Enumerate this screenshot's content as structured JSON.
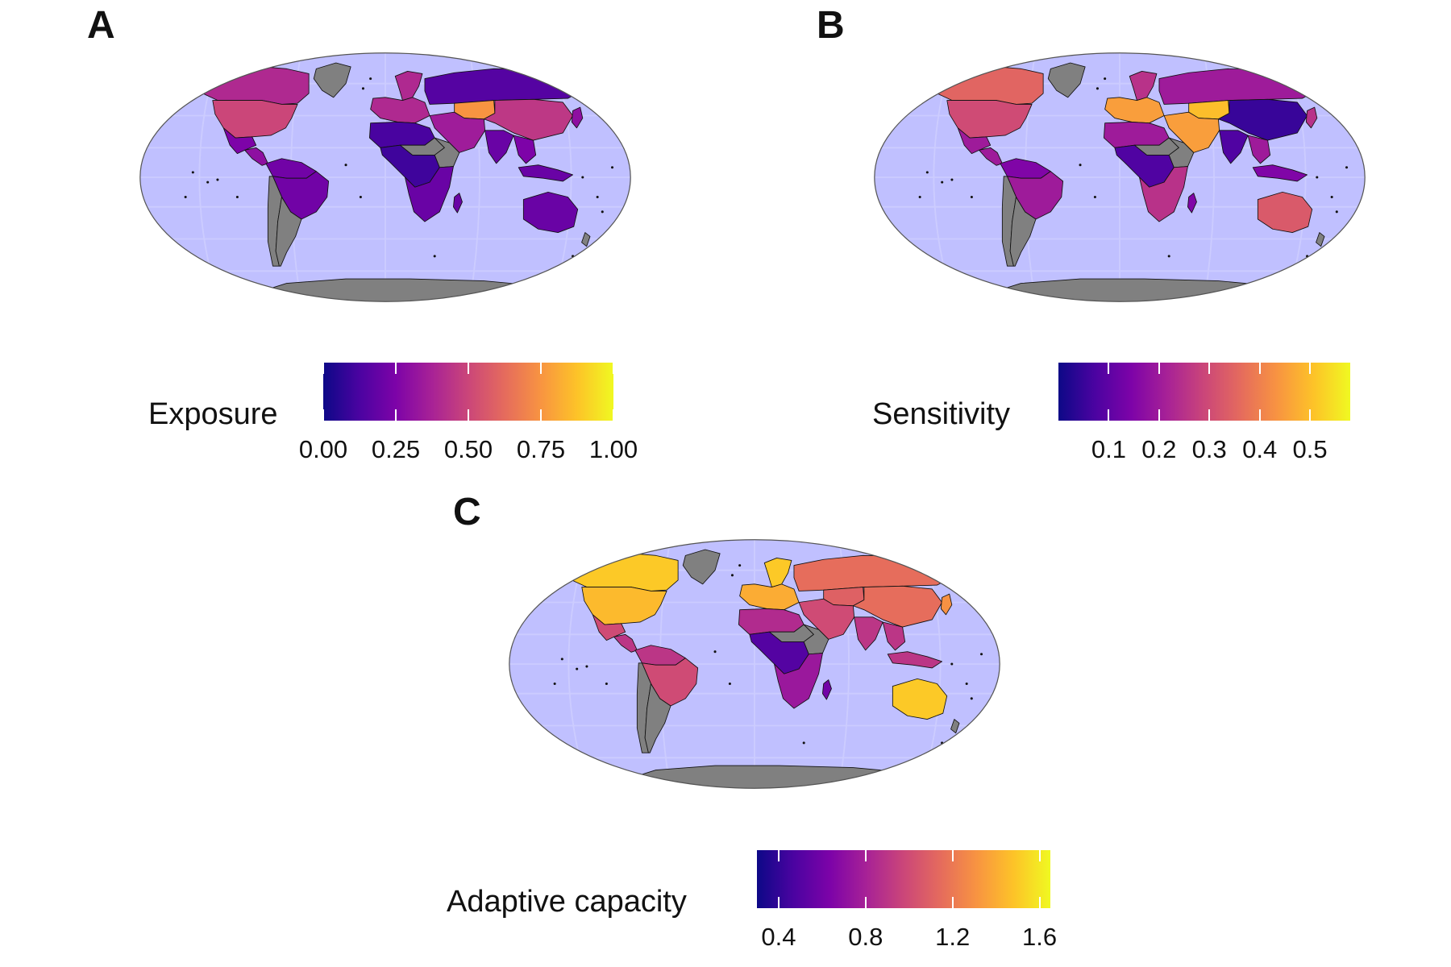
{
  "colors": {
    "ocean": "#c0c0ff",
    "missing_data": "#808080",
    "border": "#111111",
    "colormap": "plasma"
  },
  "panels": [
    {
      "letter": "A",
      "legend": {
        "title": "Exposure",
        "min": 0.0,
        "max": 1.0,
        "ticks": [
          {
            "label": "0.00",
            "value": 0.0
          },
          {
            "label": "0.25",
            "value": 0.25
          },
          {
            "label": "0.50",
            "value": 0.5
          },
          {
            "label": "0.75",
            "value": 0.75
          },
          {
            "label": "1.00",
            "value": 1.0
          }
        ]
      },
      "regions": {
        "canada": 0.4,
        "usa": 0.5,
        "greenland": null,
        "mexico": 0.25,
        "central_america": 0.3,
        "south_america_north": 0.22,
        "brazil": 0.22,
        "argentina": null,
        "chile": null,
        "europe": 0.4,
        "scandinavia": 0.4,
        "russia": 0.15,
        "kazakhstan": 0.75,
        "middle_east": 0.35,
        "north_africa": 0.12,
        "sahel": null,
        "central_africa": 0.1,
        "east_africa": null,
        "southern_africa": 0.2,
        "madagascar": 0.2,
        "south_asia": 0.2,
        "china": 0.45,
        "southeast_asia": 0.25,
        "indonesia": 0.2,
        "australia": 0.2,
        "new_zealand": null,
        "antarctica": null,
        "japan": 0.3
      }
    },
    {
      "letter": "B",
      "legend": {
        "title": "Sensitivity",
        "min": 0.0,
        "max": 0.58,
        "ticks": [
          {
            "label": "0.1",
            "value": 0.1
          },
          {
            "label": "0.2",
            "value": 0.2
          },
          {
            "label": "0.3",
            "value": 0.3
          },
          {
            "label": "0.4",
            "value": 0.4
          },
          {
            "label": "0.5",
            "value": 0.5
          }
        ]
      },
      "regions": {
        "canada": 0.35,
        "usa": 0.3,
        "greenland": null,
        "mexico": 0.2,
        "central_america": 0.2,
        "south_america_north": 0.15,
        "brazil": 0.2,
        "argentina": null,
        "chile": null,
        "europe": 0.45,
        "scandinavia": 0.25,
        "russia": 0.2,
        "kazakhstan": 0.5,
        "middle_east": 0.45,
        "north_africa": 0.2,
        "sahel": null,
        "central_africa": 0.08,
        "east_africa": null,
        "southern_africa": 0.25,
        "madagascar": 0.15,
        "south_asia": 0.08,
        "china": 0.05,
        "southeast_asia": 0.2,
        "indonesia": 0.15,
        "australia": 0.33,
        "new_zealand": null,
        "antarctica": null,
        "japan": 0.25
      }
    },
    {
      "letter": "C",
      "legend": {
        "title": "Adaptive capacity",
        "min": 0.3,
        "max": 1.65,
        "ticks": [
          {
            "label": "0.4",
            "value": 0.4
          },
          {
            "label": "0.8",
            "value": 0.8
          },
          {
            "label": "1.2",
            "value": 1.2
          },
          {
            "label": "1.6",
            "value": 1.6
          }
        ]
      },
      "regions": {
        "canada": 1.5,
        "usa": 1.45,
        "greenland": null,
        "mexico": 1.0,
        "central_america": 0.9,
        "south_america_north": 0.9,
        "brazil": 1.0,
        "argentina": null,
        "chile": null,
        "europe": 1.4,
        "scandinavia": 1.5,
        "russia": 1.15,
        "kazakhstan": 1.1,
        "middle_east": 1.0,
        "north_africa": 0.85,
        "sahel": null,
        "central_africa": 0.5,
        "east_africa": null,
        "southern_africa": 0.75,
        "madagascar": 0.6,
        "south_asia": 0.9,
        "china": 1.15,
        "southeast_asia": 0.9,
        "indonesia": 0.9,
        "australia": 1.5,
        "new_zealand": null,
        "antarctica": null,
        "japan": 1.3
      }
    }
  ]
}
